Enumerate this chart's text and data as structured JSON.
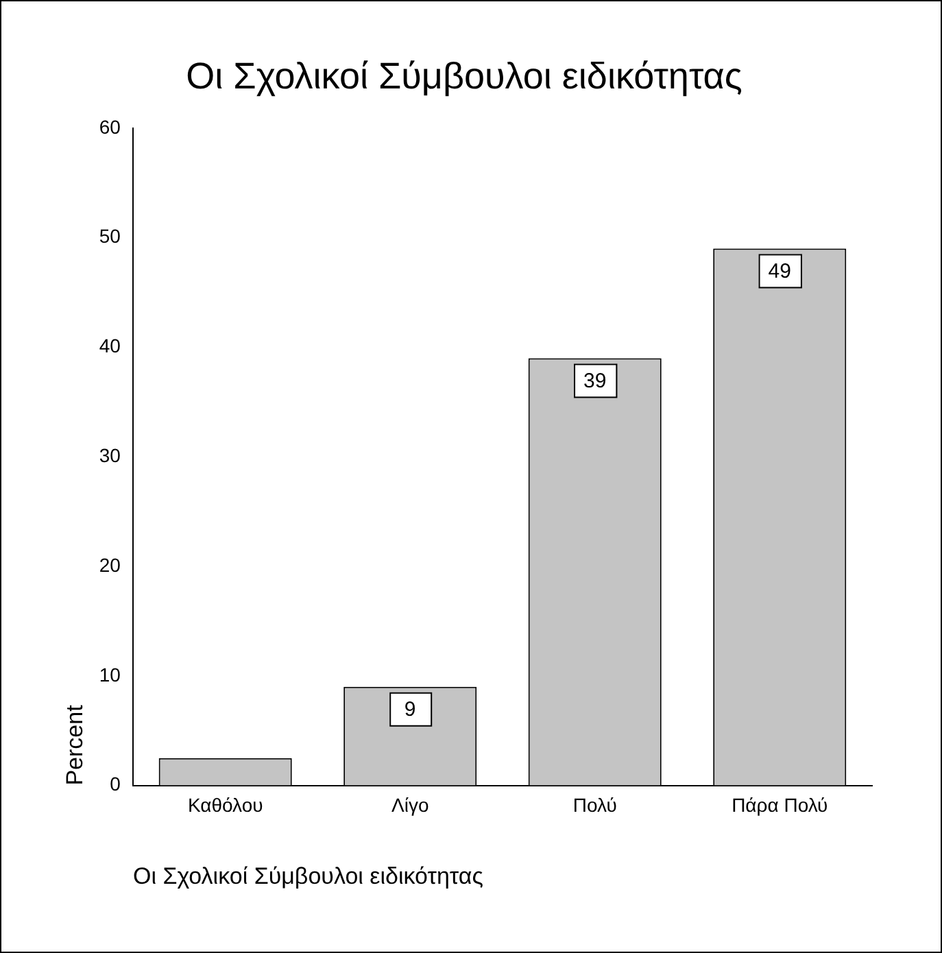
{
  "chart_data": {
    "type": "bar",
    "title": "Οι Σχολικοί Σύμβουλοι ειδικότητας",
    "xlabel": "Οι Σχολικοί Σύμβουλοι ειδικότητας",
    "ylabel": "Percent",
    "categories": [
      "Καθόλου",
      "Λίγο",
      "Πολύ",
      "Πάρα Πολύ"
    ],
    "values": [
      2.5,
      9,
      39,
      49
    ],
    "value_labels": [
      null,
      "9",
      "39",
      "49"
    ],
    "color": "#c4c4c4",
    "ylim": [
      0,
      60
    ],
    "yticks": [
      0,
      10,
      20,
      30,
      40,
      50,
      60
    ],
    "grid": false,
    "legend": false
  }
}
